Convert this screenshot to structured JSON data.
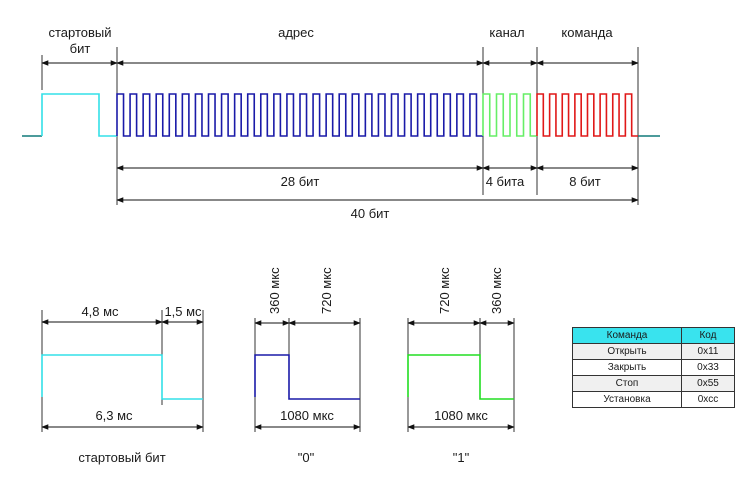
{
  "colors": {
    "start_bit": "#33e0e8",
    "address": "#1a1aa8",
    "channel": "#66ee66",
    "command": "#e01818",
    "idle": "#117a7a",
    "bit_one": "#22dd22",
    "table_header": "#39e3ee"
  },
  "frame": {
    "labels": {
      "start_bit": "стартовый\nбит",
      "address": "адрес",
      "channel": "канал",
      "command": "команда"
    },
    "counts": {
      "address_bits": "28 бит",
      "channel_bits": "4 бита",
      "command_bits": "8 бит",
      "total_bits": "40 бит"
    },
    "segments": [
      {
        "name": "address",
        "pulses": 28,
        "color": "#1a1aa8"
      },
      {
        "name": "channel",
        "pulses": 4,
        "color": "#66ee66"
      },
      {
        "name": "command",
        "pulses": 8,
        "color": "#e01818"
      }
    ]
  },
  "start_bit_detail": {
    "high_label": "4,8 мс",
    "low_label": "1,5 мс",
    "total_label": "6,3 мс",
    "caption": "стартовый бит"
  },
  "zero_bit": {
    "high_label": "360 мкс",
    "low_label": "720 мкс",
    "total_label": "1080 мкс",
    "caption": "\"0\""
  },
  "one_bit": {
    "high_label": "720 мкс",
    "low_label": "360 мкс",
    "total_label": "1080 мкс",
    "caption": "\"1\""
  },
  "command_table": {
    "headers": [
      "Команда",
      "Код"
    ],
    "rows": [
      [
        "Открыть",
        "0x11"
      ],
      [
        "Закрыть",
        "0x33"
      ],
      [
        "Стоп",
        "0x55"
      ],
      [
        "Установка",
        "0xcc"
      ]
    ]
  }
}
